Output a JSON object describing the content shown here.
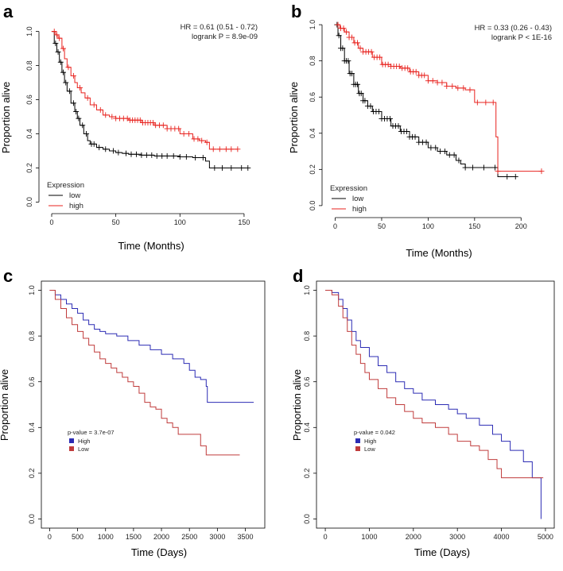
{
  "chart_data": [
    {
      "panel": "a",
      "type": "line",
      "subtype": "kaplan-meier",
      "xlabel": "Time (Months)",
      "ylabel": "Proportion alive",
      "xlim": [
        0,
        155
      ],
      "ylim": [
        0,
        1
      ],
      "xticks": [
        0,
        50,
        100,
        150
      ],
      "yticks": [
        0.0,
        0.2,
        0.4,
        0.6,
        0.8,
        1.0
      ],
      "ytick_labels": [
        "0.0",
        "0.2",
        "0.4",
        "0.6",
        "0.8",
        "1.0"
      ],
      "stats": [
        "HR = 0.61 (0.51 - 0.72)",
        "logrank P = 8.9e-09"
      ],
      "legend_title": "Expression",
      "legend_style": "line",
      "frame": "open",
      "series": [
        {
          "name": "low",
          "color": "#000000",
          "x": [
            0,
            2,
            4,
            6,
            8,
            10,
            12,
            15,
            18,
            20,
            22,
            25,
            28,
            30,
            35,
            40,
            45,
            50,
            55,
            60,
            70,
            80,
            90,
            100,
            110,
            120,
            123,
            140,
            153
          ],
          "y": [
            1.0,
            0.93,
            0.88,
            0.82,
            0.76,
            0.7,
            0.65,
            0.58,
            0.53,
            0.49,
            0.45,
            0.4,
            0.36,
            0.34,
            0.32,
            0.31,
            0.3,
            0.29,
            0.285,
            0.28,
            0.275,
            0.27,
            0.27,
            0.265,
            0.26,
            0.24,
            0.2,
            0.2,
            0.2
          ],
          "censor_x": [
            3,
            5,
            7,
            9,
            11,
            14,
            17,
            19,
            21,
            24,
            27,
            31,
            33,
            37,
            42,
            48,
            52,
            58,
            62,
            66,
            70,
            74,
            78,
            82,
            86,
            90,
            95,
            100,
            105,
            112,
            118,
            127,
            133,
            140,
            148,
            153
          ]
        },
        {
          "name": "high",
          "color": "#e8231f",
          "x": [
            0,
            3,
            5,
            8,
            10,
            12,
            15,
            18,
            20,
            23,
            26,
            30,
            35,
            40,
            45,
            50,
            60,
            70,
            80,
            90,
            100,
            110,
            115,
            120,
            123,
            135,
            145
          ],
          "y": [
            1.0,
            0.98,
            0.96,
            0.9,
            0.84,
            0.79,
            0.74,
            0.7,
            0.67,
            0.64,
            0.61,
            0.57,
            0.54,
            0.51,
            0.5,
            0.49,
            0.48,
            0.465,
            0.45,
            0.43,
            0.4,
            0.37,
            0.36,
            0.35,
            0.31,
            0.31,
            0.31
          ],
          "censor_x": [
            2,
            4,
            6,
            9,
            13,
            17,
            22,
            28,
            33,
            38,
            42,
            47,
            50,
            53,
            56,
            59,
            61,
            63,
            65,
            67,
            69,
            71,
            73,
            75,
            77,
            79,
            81,
            84,
            87,
            90,
            93,
            96,
            99,
            103,
            107,
            111,
            114,
            117,
            121,
            126,
            131,
            136,
            140,
            145
          ]
        }
      ]
    },
    {
      "panel": "b",
      "type": "line",
      "subtype": "kaplan-meier",
      "xlabel": "Time (Months)",
      "ylabel": "Proportion alive",
      "xlim": [
        0,
        225
      ],
      "ylim": [
        0,
        1
      ],
      "xticks": [
        0,
        50,
        100,
        150,
        200
      ],
      "yticks": [
        0.0,
        0.2,
        0.4,
        0.6,
        0.8,
        1.0
      ],
      "ytick_labels": [
        "0.0",
        "0.2",
        "0.4",
        "0.6",
        "0.8",
        "1.0"
      ],
      "stats": [
        "HR = 0.33 (0.26 - 0.43)",
        "logrank P < 1E-16"
      ],
      "legend_title": "Expression",
      "legend_style": "line",
      "frame": "open",
      "series": [
        {
          "name": "low",
          "color": "#000000",
          "x": [
            0,
            3,
            6,
            10,
            15,
            20,
            25,
            30,
            35,
            40,
            50,
            60,
            70,
            80,
            90,
            100,
            110,
            120,
            130,
            135,
            140,
            150,
            160,
            170,
            175,
            178,
            195
          ],
          "y": [
            1.0,
            0.94,
            0.87,
            0.8,
            0.73,
            0.67,
            0.62,
            0.58,
            0.55,
            0.52,
            0.48,
            0.44,
            0.41,
            0.38,
            0.35,
            0.32,
            0.3,
            0.28,
            0.25,
            0.23,
            0.21,
            0.21,
            0.21,
            0.21,
            0.16,
            0.16,
            0.16
          ],
          "censor_x": [
            2,
            4,
            6,
            8,
            10,
            12,
            14,
            16,
            18,
            20,
            22,
            24,
            26,
            28,
            30,
            32,
            35,
            38,
            41,
            44,
            47,
            50,
            53,
            56,
            59,
            62,
            65,
            68,
            71,
            74,
            77,
            80,
            83,
            86,
            90,
            94,
            98,
            103,
            108,
            113,
            118,
            123,
            128,
            133,
            140,
            148,
            160,
            172,
            185,
            194
          ]
        },
        {
          "name": "high",
          "color": "#e8231f",
          "x": [
            0,
            5,
            10,
            15,
            20,
            25,
            30,
            40,
            50,
            60,
            70,
            80,
            90,
            100,
            110,
            120,
            130,
            140,
            150,
            160,
            170,
            173,
            175,
            178,
            200,
            222
          ],
          "y": [
            1.0,
            0.98,
            0.96,
            0.93,
            0.9,
            0.87,
            0.85,
            0.82,
            0.78,
            0.77,
            0.76,
            0.74,
            0.72,
            0.69,
            0.68,
            0.66,
            0.65,
            0.64,
            0.57,
            0.57,
            0.57,
            0.38,
            0.19,
            0.19,
            0.19,
            0.19
          ],
          "censor_x": [
            3,
            6,
            9,
            12,
            15,
            18,
            21,
            24,
            27,
            30,
            33,
            36,
            39,
            42,
            45,
            48,
            51,
            54,
            57,
            60,
            63,
            66,
            69,
            72,
            75,
            78,
            81,
            84,
            87,
            90,
            93,
            96,
            100,
            105,
            110,
            115,
            120,
            126,
            132,
            138,
            145,
            153,
            162,
            170,
            175,
            222
          ]
        }
      ]
    },
    {
      "panel": "c",
      "type": "line",
      "subtype": "kaplan-meier",
      "xlabel": "Time (Days)",
      "ylabel": "Proportion alive",
      "xlim": [
        0,
        3700
      ],
      "ylim": [
        0,
        1
      ],
      "xticks": [
        0,
        500,
        1000,
        1500,
        2000,
        2500,
        3000,
        3500
      ],
      "yticks": [
        0.0,
        0.2,
        0.4,
        0.6,
        0.8,
        1.0
      ],
      "ytick_labels": [
        "0.0",
        "0.2",
        "0.4",
        "0.6",
        "0.8",
        "1.0"
      ],
      "stats": [
        "p-value = 3.7e-07"
      ],
      "legend_title": "",
      "legend_style": "box",
      "frame": "box",
      "series": [
        {
          "name": "High",
          "color": "#2c2cb4",
          "x": [
            0,
            100,
            200,
            300,
            400,
            500,
            600,
            700,
            800,
            900,
            1000,
            1200,
            1400,
            1600,
            1800,
            2000,
            2200,
            2400,
            2500,
            2600,
            2700,
            2800,
            2820,
            3000,
            3650
          ],
          "y": [
            1.0,
            0.98,
            0.96,
            0.94,
            0.92,
            0.9,
            0.87,
            0.85,
            0.83,
            0.82,
            0.81,
            0.8,
            0.78,
            0.76,
            0.74,
            0.72,
            0.7,
            0.68,
            0.65,
            0.62,
            0.61,
            0.58,
            0.51,
            0.51,
            0.51
          ],
          "censor_x": []
        },
        {
          "name": "Low",
          "color": "#c03c3c",
          "x": [
            0,
            100,
            200,
            300,
            400,
            500,
            600,
            700,
            800,
            900,
            1000,
            1100,
            1200,
            1300,
            1400,
            1500,
            1600,
            1700,
            1800,
            1900,
            2000,
            2100,
            2200,
            2300,
            2500,
            2700,
            2800,
            3400
          ],
          "y": [
            1.0,
            0.96,
            0.92,
            0.88,
            0.85,
            0.82,
            0.79,
            0.76,
            0.73,
            0.7,
            0.68,
            0.66,
            0.64,
            0.62,
            0.6,
            0.58,
            0.55,
            0.51,
            0.49,
            0.48,
            0.44,
            0.42,
            0.4,
            0.37,
            0.37,
            0.32,
            0.28,
            0.28
          ],
          "censor_x": []
        }
      ]
    },
    {
      "panel": "d",
      "type": "line",
      "subtype": "kaplan-meier",
      "xlabel": "Time (Days)",
      "ylabel": "Proportion alive",
      "xlim": [
        0,
        5000
      ],
      "ylim": [
        0,
        1
      ],
      "xticks": [
        0,
        1000,
        2000,
        3000,
        4000,
        5000
      ],
      "yticks": [
        0.0,
        0.2,
        0.4,
        0.6,
        0.8,
        1.0
      ],
      "ytick_labels": [
        "0.0",
        "0.2",
        "0.4",
        "0.6",
        "0.8",
        "1.0"
      ],
      "stats": [
        "p-value = 0.042"
      ],
      "legend_title": "",
      "legend_style": "box",
      "frame": "box",
      "series": [
        {
          "name": "High",
          "color": "#2c2cb4",
          "x": [
            0,
            150,
            300,
            400,
            500,
            600,
            700,
            800,
            1000,
            1200,
            1400,
            1600,
            1800,
            2000,
            2200,
            2500,
            2800,
            3000,
            3200,
            3500,
            3800,
            4000,
            4200,
            4500,
            4700,
            4900
          ],
          "y": [
            1.0,
            0.99,
            0.96,
            0.92,
            0.87,
            0.82,
            0.78,
            0.75,
            0.71,
            0.67,
            0.64,
            0.6,
            0.57,
            0.55,
            0.52,
            0.5,
            0.48,
            0.46,
            0.44,
            0.41,
            0.37,
            0.34,
            0.3,
            0.25,
            0.18,
            0.0
          ],
          "censor_x": []
        },
        {
          "name": "Low",
          "color": "#c03c3c",
          "x": [
            0,
            150,
            300,
            400,
            500,
            600,
            700,
            800,
            900,
            1000,
            1200,
            1400,
            1600,
            1800,
            2000,
            2200,
            2500,
            2800,
            3000,
            3300,
            3500,
            3700,
            3900,
            4000,
            4950
          ],
          "y": [
            1.0,
            0.98,
            0.93,
            0.88,
            0.82,
            0.76,
            0.72,
            0.68,
            0.64,
            0.61,
            0.57,
            0.53,
            0.5,
            0.47,
            0.44,
            0.42,
            0.4,
            0.37,
            0.34,
            0.32,
            0.3,
            0.26,
            0.22,
            0.18,
            0.18
          ],
          "censor_x": []
        }
      ]
    }
  ],
  "panel_letters": [
    "a",
    "b",
    "c",
    "d"
  ]
}
